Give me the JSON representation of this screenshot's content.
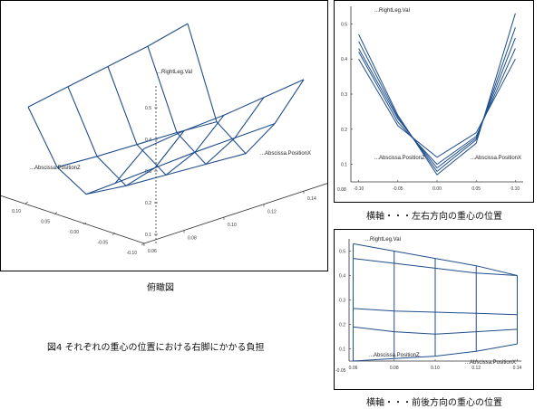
{
  "figure_title": "図4  それぞれの重心の位置における右脚にかかる負担",
  "captions": {
    "overview": "俯瞰図",
    "lateral": "横軸・・・左右方向の重心の位置",
    "frontback": "横軸・・・前後方向の重心の位置"
  },
  "colors": {
    "line": "#1f4e8c",
    "axis": "#333333"
  },
  "chart_data": [
    {
      "type": "surface",
      "view": "3d",
      "zlabel": "...RightLeg.Val",
      "xlabel": "...Abscissa.PositionX",
      "ylabel": "...Abscissa.PositionZ",
      "x_ticks": [
        "0.06",
        "0.08",
        "0.10",
        "0.12",
        "0.14"
      ],
      "y_ticks": [
        "0.10",
        "0.05",
        "0.00",
        "-0.05",
        "-0.10"
      ],
      "z_ticks": [
        "0.1",
        "0.2",
        "0.3",
        "0.4",
        "0.5"
      ]
    },
    {
      "type": "line",
      "ylabel": "...RightLeg.Val",
      "xlabel": "...Abscissa.PositionX",
      "ylabel2": "...Abscissa.PositionZ",
      "corner_label": "0.08",
      "x_ticks": [
        "-0.10",
        "-0.05",
        "0.00",
        "0.05",
        "0.10"
      ],
      "y_ticks": [
        "0.1",
        "0.2",
        "0.3",
        "0.4",
        "0.5"
      ],
      "xlim": [
        -0.11,
        0.11
      ],
      "ylim": [
        0.05,
        0.55
      ],
      "x": [
        -0.1,
        -0.05,
        0.0,
        0.05,
        0.1
      ],
      "series": [
        {
          "values": [
            0.47,
            0.24,
            0.07,
            0.16,
            0.53
          ]
        },
        {
          "values": [
            0.45,
            0.235,
            0.08,
            0.17,
            0.49
          ]
        },
        {
          "values": [
            0.43,
            0.23,
            0.09,
            0.175,
            0.46
          ]
        },
        {
          "values": [
            0.42,
            0.22,
            0.1,
            0.18,
            0.43
          ]
        },
        {
          "values": [
            0.4,
            0.21,
            0.12,
            0.19,
            0.4
          ]
        }
      ]
    },
    {
      "type": "line",
      "ylabel": "...RightLeg.Val",
      "xlabel": "...Abscissa.PositionX",
      "ylabel2": "...Abscissa.PositionZ",
      "corner_label": "-0.05",
      "x_ticks": [
        "0.06",
        "0.08",
        "0.10",
        "0.12",
        "0.14"
      ],
      "y_ticks": [
        "0.1",
        "0.2",
        "0.3",
        "0.4",
        "0.5"
      ],
      "xlim": [
        0.058,
        0.142
      ],
      "ylim": [
        0.05,
        0.55
      ],
      "x": [
        0.06,
        0.08,
        0.1,
        0.12,
        0.14
      ],
      "series": [
        {
          "values": [
            0.53,
            0.5,
            0.47,
            0.44,
            0.4
          ]
        },
        {
          "values": [
            0.47,
            0.45,
            0.43,
            0.41,
            0.4
          ]
        },
        {
          "values": [
            0.265,
            0.255,
            0.25,
            0.245,
            0.24
          ]
        },
        {
          "values": [
            0.19,
            0.17,
            0.16,
            0.17,
            0.18
          ]
        },
        {
          "values": [
            0.05,
            0.06,
            0.07,
            0.09,
            0.12
          ]
        }
      ]
    }
  ]
}
